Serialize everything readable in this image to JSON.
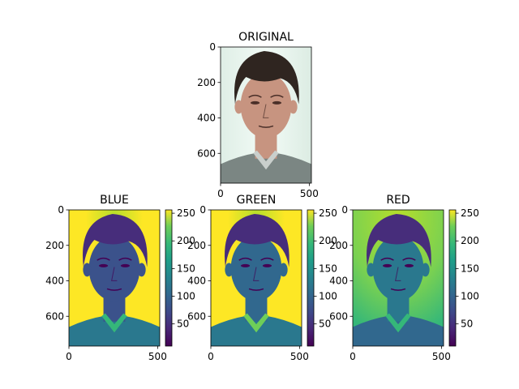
{
  "chart_data": [
    {
      "type": "image",
      "title": "ORIGINAL",
      "xticks": [
        0,
        500
      ],
      "yticks": [
        0,
        200,
        400,
        600
      ],
      "xlim": [
        0,
        512
      ],
      "ylim": [
        768,
        0
      ],
      "image_content": "color face photograph, light background"
    },
    {
      "type": "heatmap",
      "title": "BLUE",
      "colormap": "viridis",
      "xticks": [
        0,
        500
      ],
      "yticks": [
        0,
        200,
        400,
        600
      ],
      "xlim": [
        0,
        512
      ],
      "ylim": [
        768,
        0
      ],
      "colorbar": {
        "ticks": [
          50,
          100,
          150,
          200,
          250
        ],
        "range": [
          10,
          256
        ]
      }
    },
    {
      "type": "heatmap",
      "title": "GREEN",
      "colormap": "viridis",
      "xticks": [
        0,
        500
      ],
      "yticks": [
        0,
        200,
        400,
        600
      ],
      "xlim": [
        0,
        512
      ],
      "ylim": [
        768,
        0
      ],
      "colorbar": {
        "ticks": [
          50,
          100,
          150,
          200,
          250
        ],
        "range": [
          10,
          256
        ]
      }
    },
    {
      "type": "heatmap",
      "title": "RED",
      "colormap": "viridis",
      "xticks": [
        0,
        500
      ],
      "yticks": [
        0,
        200,
        400,
        600
      ],
      "xlim": [
        0,
        512
      ],
      "ylim": [
        768,
        0
      ],
      "colorbar": {
        "ticks": [
          50,
          100,
          150,
          200,
          250
        ],
        "range": [
          10,
          256
        ]
      }
    }
  ],
  "colors": {
    "viridis_low": "#440154",
    "viridis_mid": "#21918c",
    "viridis_high": "#fde725",
    "blue_face": "#3b528b",
    "green_face": "#31688e",
    "red_face": "#2a788e",
    "hair": "#472d7b",
    "skin_photo": "#c79480",
    "hair_photo": "#2f2520",
    "bg_photo": "#e8f4ef"
  }
}
